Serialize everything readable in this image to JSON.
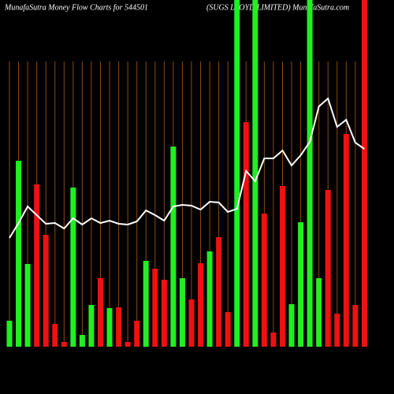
{
  "chart_data": {
    "type": "bar",
    "title": "MunafaSutra  Money Flow  Charts for 544501",
    "subtitle": "(SUGS LLOYD LIMITED) MunafaSutra.com",
    "ylim": [
      0,
      440
    ],
    "grid": true,
    "grid_color": "#8b4a14",
    "line_color": "#ffffff",
    "values": [
      33,
      236,
      105,
      206,
      142,
      29,
      6,
      202,
      15,
      53,
      87,
      49,
      50,
      6,
      33,
      109,
      99,
      85,
      254,
      87,
      60,
      106,
      121,
      139,
      44,
      440,
      285,
      440,
      169,
      18,
      204,
      54,
      158,
      440,
      87,
      199,
      42,
      270,
      53,
      440
    ],
    "colors": [
      "#22ee22",
      "#22ee22",
      "#22ee22",
      "#ee1111",
      "#ee1111",
      "#ee1111",
      "#ee1111",
      "#22ee22",
      "#22ee22",
      "#22ee22",
      "#ee1111",
      "#22ee22",
      "#ee1111",
      "#ee1111",
      "#ee1111",
      "#22ee22",
      "#ee1111",
      "#ee1111",
      "#22ee22",
      "#22ee22",
      "#ee1111",
      "#ee1111",
      "#22ee22",
      "#ee1111",
      "#ee1111",
      "#22ee22",
      "#ee1111",
      "#22ee22",
      "#ee1111",
      "#ee1111",
      "#ee1111",
      "#22ee22",
      "#22ee22",
      "#22ee22",
      "#22ee22",
      "#ee1111",
      "#ee1111",
      "#ee1111",
      "#ee1111",
      "#ee1111"
    ],
    "line_values": [
      138,
      157,
      178,
      167,
      156,
      157,
      150,
      163,
      155,
      163,
      157,
      160,
      156,
      155,
      159,
      173,
      167,
      160,
      178,
      180,
      179,
      174,
      184,
      183,
      171,
      175,
      223,
      210,
      239,
      239,
      249,
      230,
      243,
      260,
      305,
      315,
      279,
      288,
      259,
      251
    ]
  }
}
